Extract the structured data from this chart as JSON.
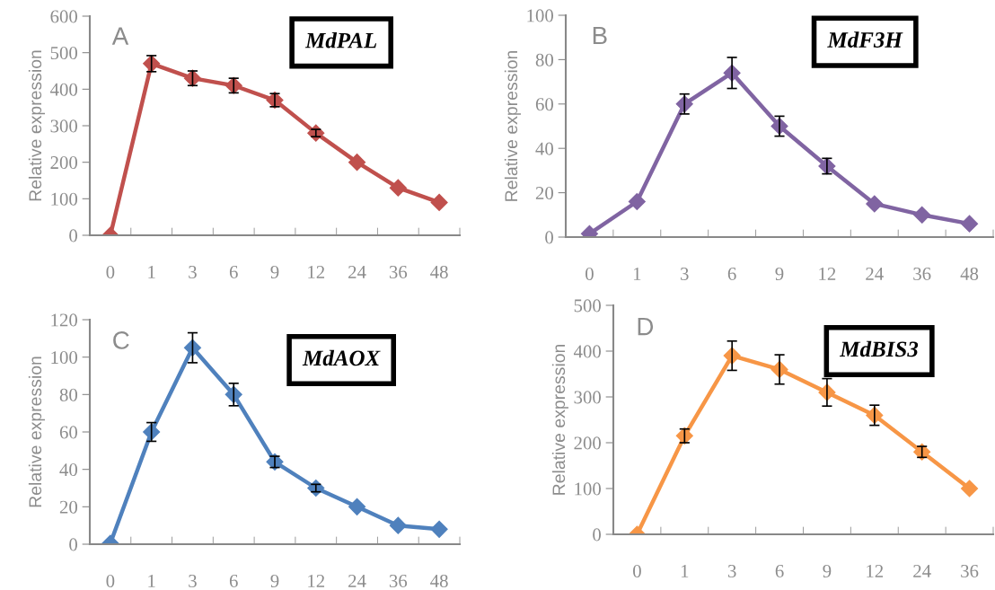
{
  "chart_data": [
    {
      "type": "line",
      "ylabel": "Relative expression",
      "categories": [
        "0",
        "1",
        "3",
        "6",
        "9",
        "12",
        "24",
        "36",
        "48"
      ],
      "ylim": [
        0,
        600
      ],
      "yticks": [
        0,
        100,
        200,
        300,
        400,
        500,
        600
      ],
      "marker": "diamond",
      "grid": false,
      "annotations": [
        "A",
        "MdPAL"
      ],
      "series": [
        {
          "color": "#c0504d",
          "values": [
            0,
            470,
            430,
            410,
            370,
            280,
            200,
            130,
            90
          ],
          "errors": [
            null,
            22,
            20,
            20,
            18,
            10,
            null,
            null,
            null
          ]
        }
      ]
    },
    {
      "type": "line",
      "ylabel": "Relative expression",
      "categories": [
        "0",
        "1",
        "3",
        "6",
        "9",
        "12",
        "24",
        "36",
        "48"
      ],
      "ylim": [
        0,
        100
      ],
      "yticks": [
        0,
        20,
        40,
        60,
        80,
        100
      ],
      "marker": "diamond",
      "grid": false,
      "annotations": [
        "B",
        "MdF3H"
      ],
      "series": [
        {
          "color": "#8064a2",
          "values": [
            1.5,
            16,
            60,
            74,
            50,
            32,
            15,
            10,
            6
          ],
          "errors": [
            null,
            null,
            4.5,
            7,
            4.5,
            3.5,
            null,
            null,
            null
          ]
        }
      ]
    },
    {
      "type": "line",
      "ylabel": "Relative expression",
      "categories": [
        "0",
        "1",
        "3",
        "6",
        "9",
        "12",
        "24",
        "36",
        "48"
      ],
      "ylim": [
        0,
        120
      ],
      "yticks": [
        0,
        20,
        40,
        60,
        80,
        100,
        120
      ],
      "marker": "diamond",
      "grid": false,
      "annotations": [
        "C",
        "MdAOX"
      ],
      "series": [
        {
          "color": "#4f81bd",
          "values": [
            0.5,
            60,
            105,
            80,
            44,
            30,
            20,
            10,
            8
          ],
          "errors": [
            null,
            5,
            8,
            6,
            3,
            2,
            null,
            null,
            null
          ]
        }
      ]
    },
    {
      "type": "line",
      "ylabel": "Relative expression",
      "categories": [
        "0",
        "1",
        "3",
        "6",
        "9",
        "12",
        "24",
        "36"
      ],
      "ylim": [
        0,
        500
      ],
      "yticks": [
        0,
        100,
        200,
        300,
        400,
        500
      ],
      "marker": "diamond",
      "grid": false,
      "annotations": [
        "D",
        "MdBIS3"
      ],
      "series": [
        {
          "color": "#f79646",
          "values": [
            0,
            215,
            390,
            360,
            310,
            260,
            180,
            100
          ],
          "errors": [
            null,
            15,
            32,
            32,
            30,
            22,
            12,
            null
          ]
        }
      ]
    }
  ]
}
